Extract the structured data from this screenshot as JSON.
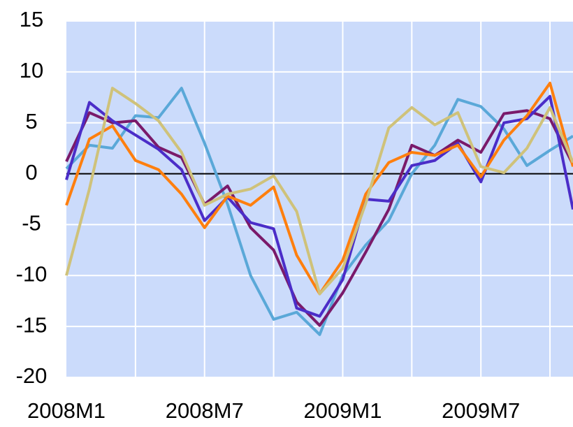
{
  "chart_data": {
    "type": "line",
    "categories": [
      "2008M1",
      null,
      null,
      null,
      null,
      null,
      "2008M7",
      null,
      null,
      null,
      null,
      null,
      "2009M1",
      null,
      null,
      null,
      null,
      null,
      "2009M7",
      null,
      null,
      null,
      null
    ],
    "series": [
      {
        "color": "#5aa8d8",
        "values": [
          0.5,
          2.8,
          2.5,
          5.7,
          5.5,
          8.4,
          3,
          -3,
          -10,
          -14.3,
          -13.6,
          -15.8,
          -10,
          -7,
          -4.6,
          0,
          2.8,
          7.3,
          6.6,
          4.4,
          0.8,
          2.3,
          3.7
        ]
      },
      {
        "color": "#7a1a6a",
        "values": [
          1.2,
          6,
          5,
          5.2,
          2.6,
          1.6,
          -3,
          -1.2,
          -5.3,
          -7.5,
          -12.6,
          -14.9,
          -11.7,
          -7.7,
          -3.5,
          2.8,
          1.8,
          3.3,
          2.1,
          5.9,
          6.2,
          5.4,
          0.9
        ]
      },
      {
        "color": "#4b2dc8",
        "values": [
          -0.6,
          7,
          5.2,
          3.8,
          2.4,
          0.4,
          -4.6,
          -2.3,
          -4.8,
          -5.4,
          -13.2,
          -14,
          -10.4,
          -2.5,
          -2.7,
          0.8,
          1.3,
          3,
          -0.8,
          5,
          5.4,
          7.6,
          -3.5
        ]
      },
      {
        "color": "#ff7f0e",
        "values": [
          -3.1,
          3.4,
          4.7,
          1.3,
          0.4,
          -2,
          -5.3,
          -2.2,
          -3.1,
          -1.3,
          -8,
          -11.8,
          -8.5,
          -2,
          1.1,
          2.1,
          1.8,
          2.8,
          -0.3,
          3.3,
          5.7,
          8.9,
          0.7
        ]
      },
      {
        "color": "#cfc27a",
        "values": [
          -10,
          -1.5,
          8.4,
          6.9,
          5.2,
          2.1,
          -3.1,
          -2,
          -1.5,
          -0.2,
          -3.7,
          -11.8,
          -9.3,
          -2.9,
          4.5,
          6.5,
          4.8,
          6,
          0.7,
          0.1,
          2.5,
          6.5,
          1.1
        ]
      }
    ],
    "ylim": [
      -20,
      15
    ],
    "yticks": [
      -20,
      -15,
      -10,
      -5,
      0,
      5,
      10,
      15
    ],
    "grid": true
  }
}
